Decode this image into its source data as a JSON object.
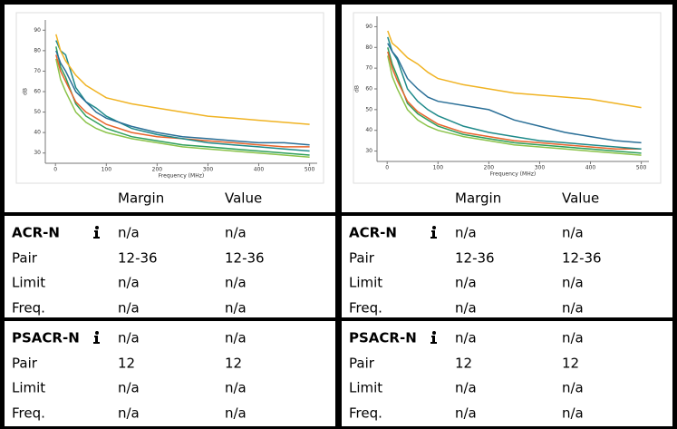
{
  "chart_data": [
    {
      "type": "line",
      "ylabel": "dB",
      "xlabel": "Frequency (MHz)",
      "x": [
        1,
        10,
        20,
        40,
        60,
        80,
        100,
        150,
        200,
        250,
        300,
        350,
        400,
        450,
        500
      ],
      "xlim": [
        -20,
        515
      ],
      "ylim": [
        25,
        95
      ],
      "xticks": [
        0,
        100,
        200,
        300,
        400,
        500
      ],
      "yticks": [
        30,
        40,
        50,
        60,
        70,
        80,
        90
      ],
      "series": [
        {
          "color": "#8bc34a",
          "values": [
            76,
            66,
            60,
            50,
            45,
            42,
            40,
            37,
            35,
            33,
            32,
            31,
            30,
            29,
            28
          ]
        },
        {
          "color": "#2e9e5b",
          "values": [
            82,
            72,
            67,
            54,
            48,
            45,
            42,
            38,
            36,
            34,
            33,
            32,
            31,
            30,
            29
          ]
        },
        {
          "color": "#e8642c",
          "values": [
            78,
            70,
            65,
            55,
            50,
            47,
            44,
            40,
            38,
            37,
            36,
            35,
            34,
            33,
            33
          ]
        },
        {
          "color": "#1f8a8a",
          "values": [
            85,
            80,
            78,
            62,
            55,
            52,
            48,
            42,
            39,
            37,
            35,
            34,
            33,
            32,
            31
          ]
        },
        {
          "color": "#2a6f97",
          "values": [
            80,
            74,
            70,
            60,
            55,
            50,
            47,
            43,
            40,
            38,
            37,
            36,
            35,
            35,
            34
          ]
        },
        {
          "color": "#f0b323",
          "values": [
            88,
            80,
            75,
            68,
            63,
            60,
            57,
            54,
            52,
            50,
            48,
            47,
            46,
            45,
            44
          ]
        }
      ]
    },
    {
      "type": "line",
      "ylabel": "dB",
      "xlabel": "Frequency (MHz)",
      "x": [
        1,
        10,
        20,
        40,
        60,
        80,
        100,
        150,
        200,
        250,
        300,
        350,
        400,
        450,
        500
      ],
      "xlim": [
        -20,
        515
      ],
      "ylim": [
        25,
        95
      ],
      "xticks": [
        0,
        100,
        200,
        300,
        400,
        500
      ],
      "yticks": [
        30,
        40,
        50,
        60,
        70,
        80,
        90
      ],
      "series": [
        {
          "color": "#8bc34a",
          "values": [
            76,
            66,
            60,
            50,
            45,
            42,
            40,
            37,
            35,
            33,
            32,
            31,
            30,
            29,
            28
          ]
        },
        {
          "color": "#2e9e5b",
          "values": [
            80,
            72,
            66,
            53,
            48,
            45,
            42,
            38,
            36,
            34,
            33,
            32,
            31,
            30,
            29
          ]
        },
        {
          "color": "#e8642c",
          "values": [
            78,
            70,
            64,
            54,
            49,
            46,
            43,
            39,
            37,
            35,
            34,
            33,
            32,
            31,
            31
          ]
        },
        {
          "color": "#1f8a8a",
          "values": [
            85,
            78,
            74,
            60,
            54,
            50,
            47,
            42,
            39,
            37,
            35,
            34,
            33,
            32,
            31
          ]
        },
        {
          "color": "#2a6f97",
          "values": [
            82,
            78,
            75,
            65,
            60,
            56,
            54,
            52,
            50,
            45,
            42,
            39,
            37,
            35,
            34
          ]
        },
        {
          "color": "#f0b323",
          "values": [
            88,
            82,
            80,
            75,
            72,
            68,
            65,
            62,
            60,
            58,
            57,
            56,
            55,
            53,
            51
          ]
        }
      ]
    }
  ],
  "tables": [
    {
      "columns": [
        "Margin",
        "Value"
      ],
      "sections": [
        {
          "title": "ACR-N",
          "values": [
            "n/a",
            "n/a"
          ],
          "rows": [
            [
              "Pair",
              "12-36",
              "12-36"
            ],
            [
              "Limit",
              "n/a",
              "n/a"
            ],
            [
              "Freq.",
              "n/a",
              "n/a"
            ]
          ]
        },
        {
          "title": "PSACR-N",
          "values": [
            "n/a",
            "n/a"
          ],
          "rows": [
            [
              "Pair",
              "12",
              "12"
            ],
            [
              "Limit",
              "n/a",
              "n/a"
            ],
            [
              "Freq.",
              "n/a",
              "n/a"
            ]
          ]
        }
      ]
    },
    {
      "columns": [
        "Margin",
        "Value"
      ],
      "sections": [
        {
          "title": "ACR-N",
          "values": [
            "n/a",
            "n/a"
          ],
          "rows": [
            [
              "Pair",
              "12-36",
              "12-36"
            ],
            [
              "Limit",
              "n/a",
              "n/a"
            ],
            [
              "Freq.",
              "n/a",
              "n/a"
            ]
          ]
        },
        {
          "title": "PSACR-N",
          "values": [
            "n/a",
            "n/a"
          ],
          "rows": [
            [
              "Pair",
              "12",
              "12"
            ],
            [
              "Limit",
              "n/a",
              "n/a"
            ],
            [
              "Freq.",
              "n/a",
              "n/a"
            ]
          ]
        }
      ]
    }
  ]
}
